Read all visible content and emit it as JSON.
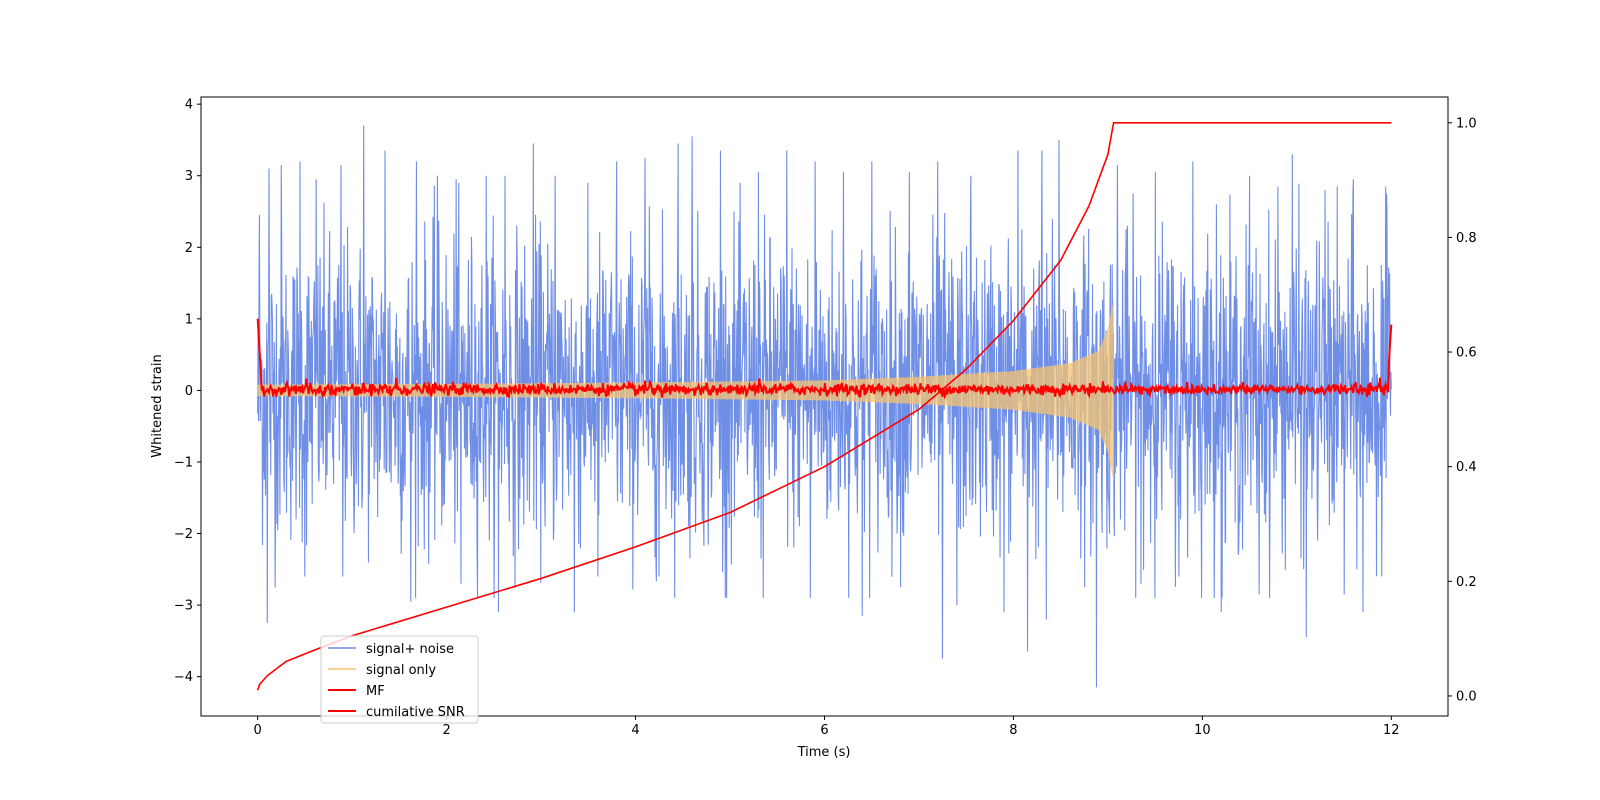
{
  "chart_data": {
    "type": "line",
    "title": "",
    "xlabel": "Time (s)",
    "ylabel": "Whitened strain",
    "y2label": "",
    "xlim": [
      -0.6,
      12.6
    ],
    "ylim": [
      -4.55,
      4.1
    ],
    "y2lim": [
      -0.035,
      1.045
    ],
    "xticks": [
      0,
      2,
      4,
      6,
      8,
      10,
      12
    ],
    "yticks": [
      -4,
      -3,
      -2,
      -1,
      0,
      1,
      2,
      3,
      4
    ],
    "y2ticks": [
      0.0,
      0.2,
      0.4,
      0.6,
      0.8,
      1.0
    ],
    "xtick_labels": [
      "0",
      "2",
      "4",
      "6",
      "8",
      "10",
      "12"
    ],
    "ytick_labels": [
      "−4",
      "−3",
      "−2",
      "−1",
      "0",
      "1",
      "2",
      "3",
      "4"
    ],
    "y2tick_labels": [
      "0.0",
      "0.2",
      "0.4",
      "0.6",
      "0.8",
      "1.0"
    ],
    "grid": false,
    "legend_position": "lower-left",
    "series": [
      {
        "name": "signal+ noise",
        "color": "#6f8ee6",
        "axis": "left",
        "kind": "noise",
        "x_range": [
          0,
          12
        ],
        "peak_positive": [
          [
            0.02,
            2.45
          ],
          [
            0.12,
            3.1
          ],
          [
            0.25,
            3.15
          ],
          [
            0.45,
            3.2
          ],
          [
            0.62,
            2.95
          ],
          [
            0.88,
            3.15
          ],
          [
            1.12,
            3.7
          ],
          [
            1.35,
            3.35
          ],
          [
            1.68,
            3.2
          ],
          [
            1.9,
            3.0
          ],
          [
            2.1,
            2.95
          ],
          [
            2.42,
            3.0
          ],
          [
            2.62,
            3.0
          ],
          [
            2.92,
            3.45
          ],
          [
            3.15,
            3.0
          ],
          [
            3.35,
            3.6
          ],
          [
            3.8,
            3.2
          ],
          [
            4.1,
            3.25
          ],
          [
            4.45,
            3.45
          ],
          [
            4.6,
            3.55
          ],
          [
            4.9,
            3.35
          ],
          [
            5.3,
            3.05
          ],
          [
            5.6,
            3.35
          ],
          [
            5.9,
            3.2
          ],
          [
            6.2,
            3.05
          ],
          [
            6.5,
            3.2
          ],
          [
            6.9,
            3.05
          ],
          [
            7.2,
            3.2
          ],
          [
            7.55,
            3.0
          ],
          [
            8.05,
            3.35
          ],
          [
            8.3,
            3.35
          ],
          [
            8.48,
            3.5
          ],
          [
            9.1,
            3.15
          ],
          [
            9.5,
            3.05
          ],
          [
            9.9,
            3.2
          ],
          [
            10.15,
            2.6
          ],
          [
            10.5,
            3.0
          ],
          [
            10.8,
            2.85
          ],
          [
            10.95,
            3.3
          ],
          [
            11.3,
            2.8
          ],
          [
            11.6,
            2.95
          ],
          [
            11.95,
            2.75
          ]
        ],
        "peak_negative": [
          [
            0.1,
            -3.25
          ],
          [
            0.5,
            -2.6
          ],
          [
            0.9,
            -2.6
          ],
          [
            1.62,
            -2.95
          ],
          [
            2.15,
            -2.7
          ],
          [
            2.55,
            -3.1
          ],
          [
            3.35,
            -3.1
          ],
          [
            3.6,
            -2.6
          ],
          [
            4.25,
            -2.6
          ],
          [
            4.95,
            -2.9
          ],
          [
            5.35,
            -2.9
          ],
          [
            5.85,
            -2.9
          ],
          [
            6.4,
            -3.15
          ],
          [
            7.25,
            -3.75
          ],
          [
            7.4,
            -3.0
          ],
          [
            7.9,
            -3.1
          ],
          [
            8.15,
            -3.65
          ],
          [
            8.35,
            -3.2
          ],
          [
            8.88,
            -4.15
          ],
          [
            9.35,
            -2.7
          ],
          [
            9.75,
            -2.6
          ],
          [
            10.2,
            -3.1
          ],
          [
            10.6,
            -2.85
          ],
          [
            11.1,
            -3.45
          ],
          [
            11.5,
            -2.85
          ],
          [
            11.7,
            -3.1
          ],
          [
            11.9,
            -2.6
          ]
        ]
      },
      {
        "name": "signal only",
        "color": "#f5c371",
        "axis": "left",
        "kind": "chirp",
        "x_range": [
          0,
          9.06
        ],
        "amplitude_envelope": [
          [
            0,
            0.08
          ],
          [
            2,
            0.09
          ],
          [
            4,
            0.11
          ],
          [
            6,
            0.14
          ],
          [
            7,
            0.19
          ],
          [
            8,
            0.27
          ],
          [
            8.6,
            0.38
          ],
          [
            8.9,
            0.55
          ],
          [
            9.0,
            0.85
          ],
          [
            9.06,
            1.25
          ]
        ]
      },
      {
        "name": "MF",
        "color": "#ff0000",
        "axis": "left",
        "kind": "mf",
        "x_range": [
          0,
          12
        ],
        "start_value": 1.0,
        "end_value": 0.92,
        "baseline_band": [
          -0.1,
          0.12
        ]
      },
      {
        "name": "cumilative SNR",
        "color": "#ff0000",
        "axis": "right",
        "kind": "cumulative",
        "x": [
          0,
          0.02,
          0.1,
          0.3,
          0.6,
          1.0,
          2.0,
          3.0,
          4.0,
          5.0,
          6.0,
          7.0,
          7.5,
          8.0,
          8.5,
          8.8,
          9.0,
          9.06,
          12.0
        ],
        "values": [
          0.01,
          0.02,
          0.035,
          0.06,
          0.08,
          0.105,
          0.155,
          0.205,
          0.26,
          0.32,
          0.4,
          0.5,
          0.57,
          0.655,
          0.76,
          0.855,
          0.945,
          1.0,
          1.0
        ]
      }
    ]
  }
}
